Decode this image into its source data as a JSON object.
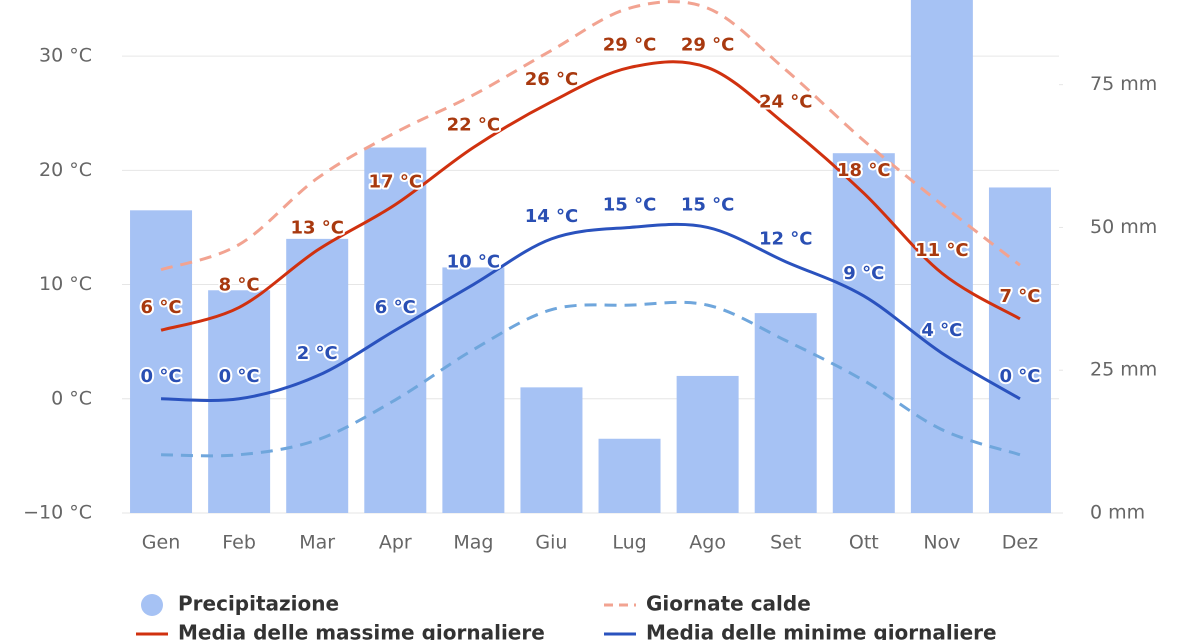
{
  "chart_data": {
    "type": "combo",
    "categories": [
      "Gen",
      "Feb",
      "Mar",
      "Apr",
      "Mag",
      "Giu",
      "Lug",
      "Ago",
      "Set",
      "Ott",
      "Nov",
      "Dez"
    ],
    "ylim": [
      -10,
      35
    ],
    "yticks": [
      {
        "value": -10,
        "label": "−10 °C"
      },
      {
        "value": 0,
        "label": "0 °C"
      },
      {
        "value": 10,
        "label": "10 °C"
      },
      {
        "value": 20,
        "label": "20 °C"
      },
      {
        "value": 30,
        "label": "30 °C"
      }
    ],
    "y2lim": [
      0,
      90
    ],
    "y2ticks": [
      {
        "value": 0,
        "label": "0 mm"
      },
      {
        "value": 25,
        "label": "25 mm"
      },
      {
        "value": 50,
        "label": "50 mm"
      },
      {
        "value": 75,
        "label": "75 mm"
      }
    ],
    "series": [
      {
        "name": "Precipitazione",
        "type": "bar",
        "axis": "y2",
        "color": "#a6c2f4",
        "values": [
          53,
          39,
          48,
          64,
          43,
          22,
          13,
          24,
          35,
          63,
          95,
          57
        ]
      },
      {
        "name": "Giornate calde",
        "type": "line",
        "dash": true,
        "color": "#f2a391",
        "values": [
          11.3,
          13.5,
          19.3,
          23.3,
          26.6,
          30.5,
          34.2,
          34.2,
          28.8,
          22.6,
          17,
          11.7
        ]
      },
      {
        "type": "line",
        "dash": true,
        "color": "#6fa6dc",
        "values": [
          -4.9,
          -4.9,
          -3.6,
          -0.1,
          4.3,
          7.8,
          8.2,
          8.2,
          5.1,
          1.6,
          -2.7,
          -4.9
        ]
      },
      {
        "name": "Media delle massime giornaliere",
        "type": "line",
        "color": "#d0310f",
        "label_color": "#a8390f",
        "values": [
          6,
          8,
          13,
          17,
          22,
          26,
          29,
          29,
          24,
          18,
          11,
          7
        ],
        "value_labels": [
          "6 °C",
          "8 °C",
          "13 °C",
          "17 °C",
          "22 °C",
          "26 °C",
          "29 °C",
          "29 °C",
          "24 °C",
          "18 °C",
          "11 °C",
          "7 °C"
        ]
      },
      {
        "name": "Media delle minime giornaliere",
        "type": "line",
        "color": "#2a52be",
        "label_color": "#2a4fb3",
        "values": [
          0,
          0,
          2,
          6,
          10,
          14,
          15,
          15,
          12,
          9,
          4,
          0
        ],
        "value_labels": [
          "0 °C",
          "0 °C",
          "2 °C",
          "6 °C",
          "10 °C",
          "14 °C",
          "15 °C",
          "15 °C",
          "12 °C",
          "9 °C",
          "4 °C",
          "0 °C"
        ]
      }
    ]
  }
}
